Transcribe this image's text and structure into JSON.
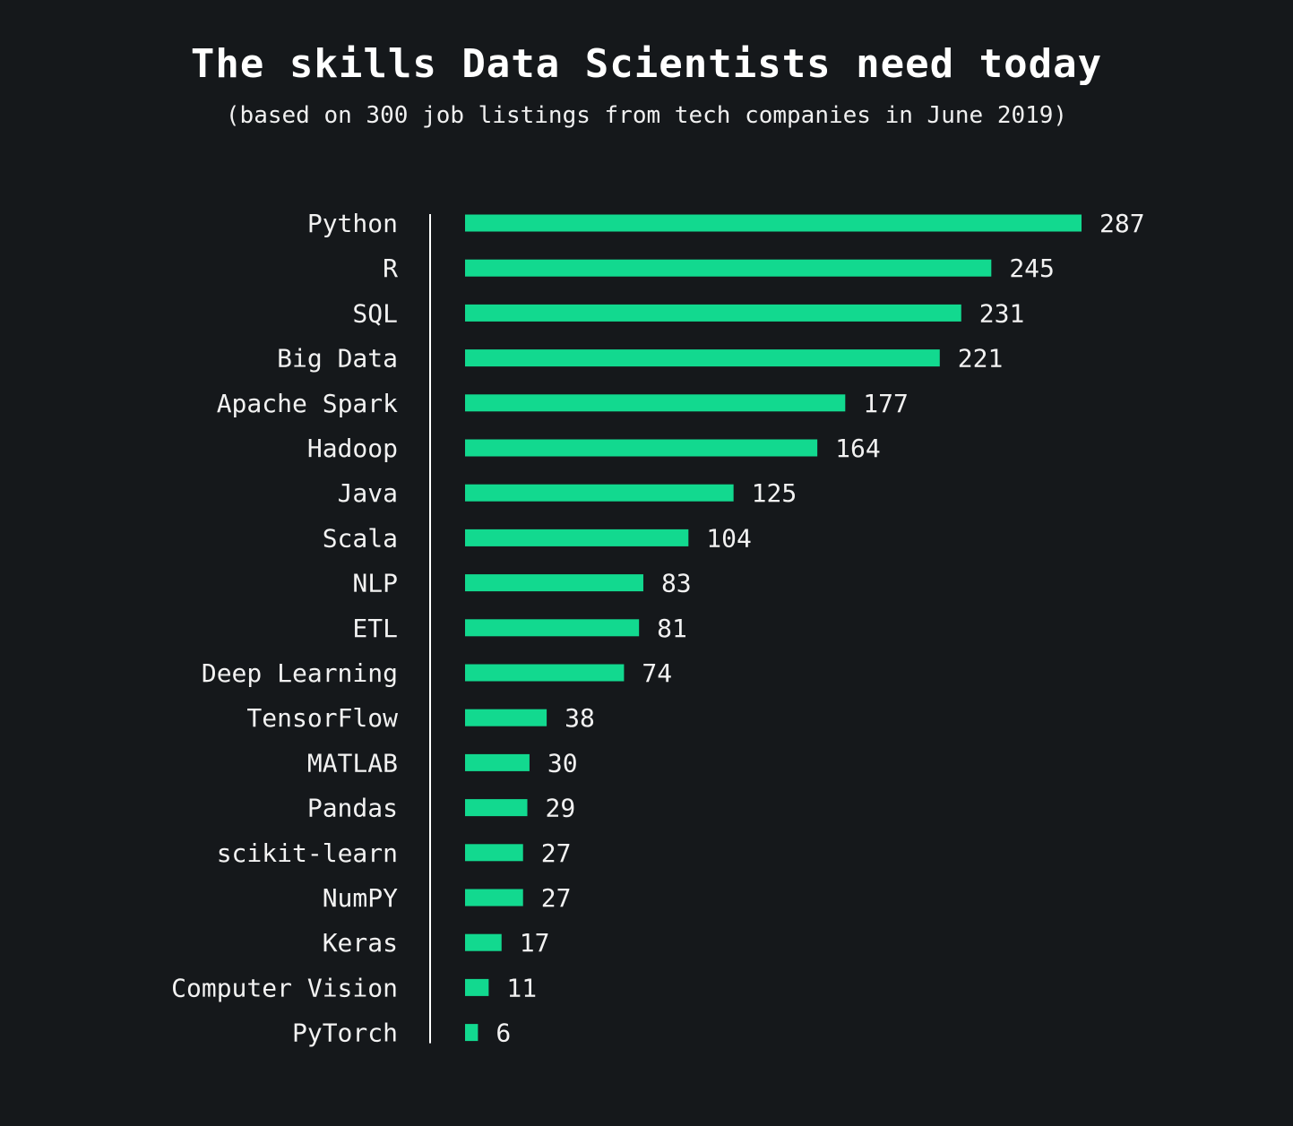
{
  "chart_data": {
    "type": "bar",
    "orientation": "horizontal",
    "title": "The skills Data Scientists need today",
    "subtitle": "(based on 300 job listings from tech companies in June 2019)",
    "categories": [
      "Python",
      "R",
      "SQL",
      "Big Data",
      "Apache Spark",
      "Hadoop",
      "Java",
      "Scala",
      "NLP",
      "ETL",
      "Deep Learning",
      "TensorFlow",
      "MATLAB",
      "Pandas",
      "scikit-learn",
      "NumPY",
      "Keras",
      "Computer Vision",
      "PyTorch"
    ],
    "values": [
      287,
      245,
      231,
      221,
      177,
      164,
      125,
      104,
      83,
      81,
      74,
      38,
      30,
      29,
      27,
      27,
      17,
      11,
      6
    ],
    "xlim": [
      0,
      287
    ],
    "grid": false,
    "legend": false,
    "bar_color": "#12d98f",
    "axis_color": "#ffffff",
    "background_color": "#15181b"
  }
}
